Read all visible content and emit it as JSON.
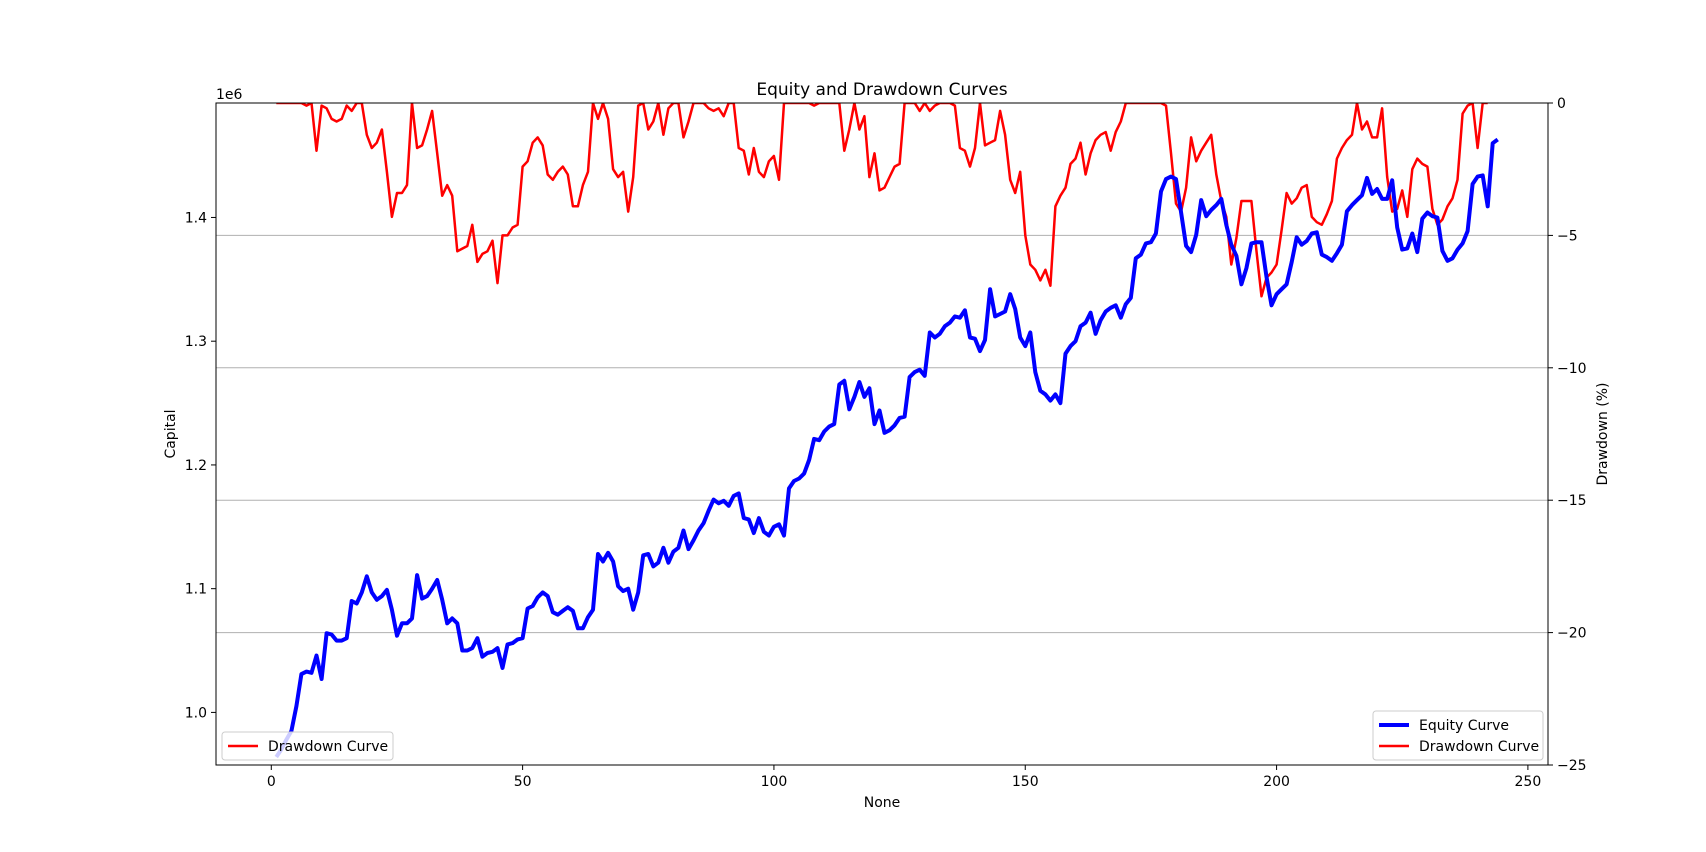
{
  "chart_data": {
    "type": "line",
    "title": "Equity and Drawdown Curves",
    "xlabel": "None",
    "ylabel_left": "Capital",
    "ylabel_right": "Drawdown (%)",
    "left_axis_offset_label": "1e6",
    "xlim": [
      -11,
      254
    ],
    "ylim_left": [
      957500,
      1492500
    ],
    "ylim_right": [
      -25,
      0
    ],
    "x_ticks": [
      0,
      50,
      100,
      150,
      200,
      250
    ],
    "y_ticks_left": [
      1.0,
      1.1,
      1.2,
      1.3,
      1.4
    ],
    "y_ticks_right": [
      0,
      -5,
      -10,
      -15,
      -20,
      -25
    ],
    "grid": "horizontal lines at drawdown ticks",
    "series": [
      {
        "name": "Equity Curve",
        "axis": "left",
        "color": "#0000ff",
        "x_start": 1,
        "values": [
          964000,
          970000,
          978000,
          985000,
          1005000,
          1031000,
          1033000,
          1032000,
          1046000,
          1027000,
          1064000,
          1063000,
          1058000,
          1058000,
          1060000,
          1090000,
          1088000,
          1097000,
          1110000,
          1097000,
          1091000,
          1094000,
          1099000,
          1083000,
          1062000,
          1072000,
          1072000,
          1076000,
          1111000,
          1092000,
          1094000,
          1100000,
          1107000,
          1091000,
          1072000,
          1076000,
          1072000,
          1050000,
          1050000,
          1052000,
          1060000,
          1045000,
          1048000,
          1049000,
          1052000,
          1036000,
          1055000,
          1056000,
          1059000,
          1060000,
          1084000,
          1086000,
          1093000,
          1097000,
          1094000,
          1081000,
          1079000,
          1082000,
          1085000,
          1082000,
          1068000,
          1068000,
          1077000,
          1083000,
          1128000,
          1122000,
          1129000,
          1122000,
          1102000,
          1098000,
          1100000,
          1083000,
          1097000,
          1127000,
          1128000,
          1118000,
          1121000,
          1133000,
          1121000,
          1130000,
          1133000,
          1147000,
          1132000,
          1139000,
          1147000,
          1153000,
          1163000,
          1172000,
          1169000,
          1171000,
          1167000,
          1175000,
          1177000,
          1157000,
          1156000,
          1145000,
          1157000,
          1146000,
          1143000,
          1150000,
          1152000,
          1143000,
          1181000,
          1187000,
          1189000,
          1193000,
          1204000,
          1221000,
          1220000,
          1227000,
          1231000,
          1233000,
          1265000,
          1268000,
          1245000,
          1255000,
          1267000,
          1255000,
          1262000,
          1233000,
          1244000,
          1226000,
          1228000,
          1232000,
          1238000,
          1239000,
          1271000,
          1275000,
          1277000,
          1272000,
          1307000,
          1303000,
          1306000,
          1312000,
          1315000,
          1320000,
          1319000,
          1325000,
          1303000,
          1302000,
          1292000,
          1301000,
          1342000,
          1320000,
          1322000,
          1324000,
          1338000,
          1326000,
          1303000,
          1296000,
          1307000,
          1275000,
          1260000,
          1257000,
          1252000,
          1257000,
          1250000,
          1290000,
          1296000,
          1300000,
          1312000,
          1315000,
          1323000,
          1306000,
          1317000,
          1324000,
          1327000,
          1329000,
          1319000,
          1330000,
          1335000,
          1367000,
          1370000,
          1379000,
          1380000,
          1387000,
          1421000,
          1431000,
          1433000,
          1431000,
          1404000,
          1377000,
          1372000,
          1386000,
          1414000,
          1401000,
          1406000,
          1410000,
          1415000,
          1394000,
          1378000,
          1369000,
          1346000,
          1359000,
          1379000,
          1380000,
          1380000,
          1352000,
          1329000,
          1338000,
          1342000,
          1346000,
          1364000,
          1384000,
          1378000,
          1381000,
          1387000,
          1388000,
          1370000,
          1368000,
          1365000,
          1371000,
          1378000,
          1405000,
          1410000,
          1414000,
          1418000,
          1432000,
          1419000,
          1423000,
          1415000,
          1415000,
          1430000,
          1392000,
          1374000,
          1375000,
          1387000,
          1372000,
          1399000,
          1404000,
          1401000,
          1400000,
          1373000,
          1365000,
          1367000,
          1374000,
          1379000,
          1389000,
          1427000,
          1433000,
          1434000,
          1409000,
          1460000,
          1463000
        ]
      },
      {
        "name": "Drawdown Curve",
        "axis": "right",
        "color": "#ff0000",
        "x_start": 1,
        "values": [
          0,
          0,
          0,
          0,
          0,
          0,
          -0.1,
          0,
          -1.8,
          -0.1,
          -0.2,
          -0.6,
          -0.7,
          -0.6,
          -0.1,
          -0.3,
          0,
          0,
          -1.2,
          -1.7,
          -1.5,
          -1.0,
          -2.6,
          -4.3,
          -3.4,
          -3.4,
          -3.1,
          0,
          -1.7,
          -1.6,
          -1.0,
          -0.3,
          -1.9,
          -3.5,
          -3.1,
          -3.5,
          -5.6,
          -5.5,
          -5.4,
          -4.6,
          -6.0,
          -5.7,
          -5.6,
          -5.2,
          -6.8,
          -5.0,
          -5.0,
          -4.7,
          -4.6,
          -2.4,
          -2.2,
          -1.5,
          -1.3,
          -1.6,
          -2.7,
          -2.9,
          -2.6,
          -2.4,
          -2.7,
          -3.9,
          -3.9,
          -3.1,
          -2.6,
          0,
          -0.6,
          0,
          -0.6,
          -2.5,
          -2.8,
          -2.6,
          -4.1,
          -2.8,
          -0.1,
          0,
          -1.0,
          -0.7,
          0,
          -1.2,
          -0.2,
          0,
          0,
          -1.3,
          -0.7,
          0,
          0,
          0,
          -0.2,
          -0.3,
          -0.2,
          -0.5,
          0,
          0,
          -1.7,
          -1.8,
          -2.7,
          -1.7,
          -2.6,
          -2.8,
          -2.2,
          -2.0,
          -2.9,
          0,
          0,
          0,
          0,
          0,
          0,
          -0.1,
          0,
          0,
          0,
          0,
          0,
          -1.8,
          -1.0,
          0,
          -1.0,
          -0.5,
          -2.8,
          -1.9,
          -3.3,
          -3.2,
          -2.8,
          -2.4,
          -2.3,
          0,
          0,
          0,
          -0.3,
          0,
          -0.3,
          -0.1,
          0,
          0,
          0,
          -0.1,
          -1.7,
          -1.8,
          -2.4,
          -1.7,
          0,
          -1.6,
          -1.5,
          -1.4,
          -0.3,
          -1.2,
          -2.9,
          -3.4,
          -2.6,
          -5.0,
          -6.1,
          -6.3,
          -6.7,
          -6.3,
          -6.9,
          -3.9,
          -3.5,
          -3.2,
          -2.3,
          -2.1,
          -1.5,
          -2.7,
          -1.9,
          -1.4,
          -1.2,
          -1.1,
          -1.8,
          -1.1,
          -0.7,
          0,
          0,
          0,
          0,
          0,
          0,
          0,
          0,
          -0.1,
          -1.9,
          -3.8,
          -4.1,
          -3.2,
          -1.3,
          -2.2,
          -1.8,
          -1.5,
          -1.2,
          -2.7,
          -3.7,
          -4.3,
          -6.1,
          -5.1,
          -3.7,
          -3.7,
          -3.7,
          -5.6,
          -7.3,
          -6.6,
          -6.4,
          -6.1,
          -4.8,
          -3.4,
          -3.8,
          -3.6,
          -3.2,
          -3.1,
          -4.3,
          -4.5,
          -4.6,
          -4.2,
          -3.7,
          -2.1,
          -1.7,
          -1.4,
          -1.2,
          0,
          -1.0,
          -0.7,
          -1.3,
          -1.3,
          -0.2,
          -2.8,
          -4.1,
          -4.0,
          -3.3,
          -4.3,
          -2.5,
          -2.1,
          -2.3,
          -2.4,
          -4.0,
          -4.6,
          -4.4,
          -3.9,
          -3.6,
          -2.9,
          -0.4,
          -0.1,
          0,
          -1.7,
          0,
          0
        ]
      }
    ],
    "legends": [
      {
        "location": "lower-left",
        "entries": [
          "Drawdown Curve"
        ]
      },
      {
        "location": "lower-right",
        "entries": [
          "Equity Curve",
          "Drawdown Curve"
        ]
      }
    ]
  }
}
